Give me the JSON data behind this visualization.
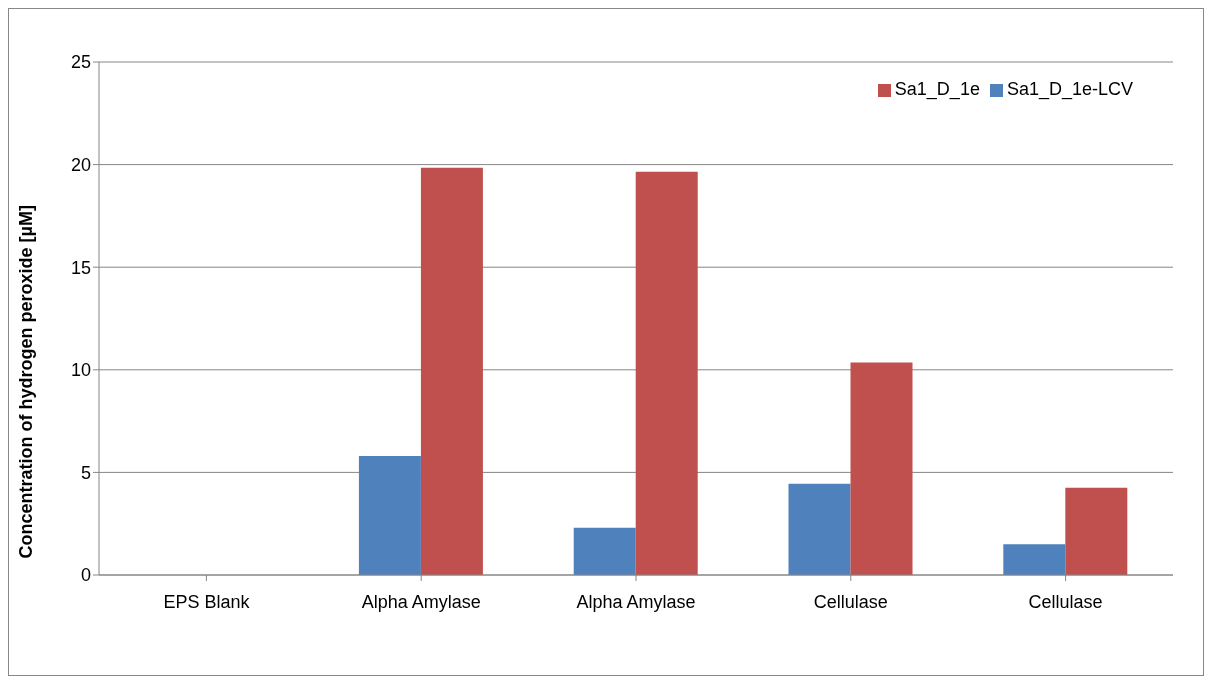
{
  "chart_data": {
    "type": "bar",
    "ylabel": "Concentration of hydrogen peroxide [µM]",
    "categories": [
      "EPS Blank",
      "Alpha Amylase",
      "Alpha Amylase",
      "Cellulase",
      "Cellulase"
    ],
    "series": [
      {
        "name": "Sa1_D_1e-LCV",
        "color": "#4f81bd",
        "values": [
          0,
          5.8,
          2.3,
          4.45,
          1.5
        ]
      },
      {
        "name": "Sa1_D_1e",
        "color": "#c0504d",
        "values": [
          0,
          19.85,
          19.65,
          10.35,
          4.25
        ]
      }
    ],
    "ylim": [
      0,
      25
    ],
    "yticks": [
      0,
      5,
      10,
      15,
      20,
      25
    ],
    "grid": "y",
    "legend": "top right"
  }
}
